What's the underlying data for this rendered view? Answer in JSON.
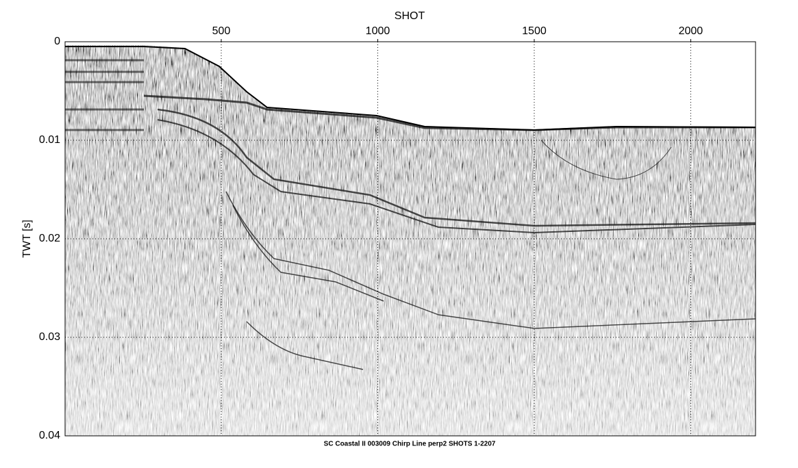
{
  "chart_data": {
    "type": "seismic",
    "x_label": "SHOT",
    "y_label": "TWT [s]",
    "caption": "SC Coastal II 003009 Chirp Line perp2 SHOTS 1-2207",
    "xlim": [
      1,
      2207
    ],
    "xticks": [
      500,
      1000,
      1500,
      2000
    ],
    "ylim": [
      0,
      0.04
    ],
    "yticks": [
      0,
      0.01,
      0.02,
      0.03,
      0.04
    ],
    "grid": true,
    "colormap": "gray"
  }
}
